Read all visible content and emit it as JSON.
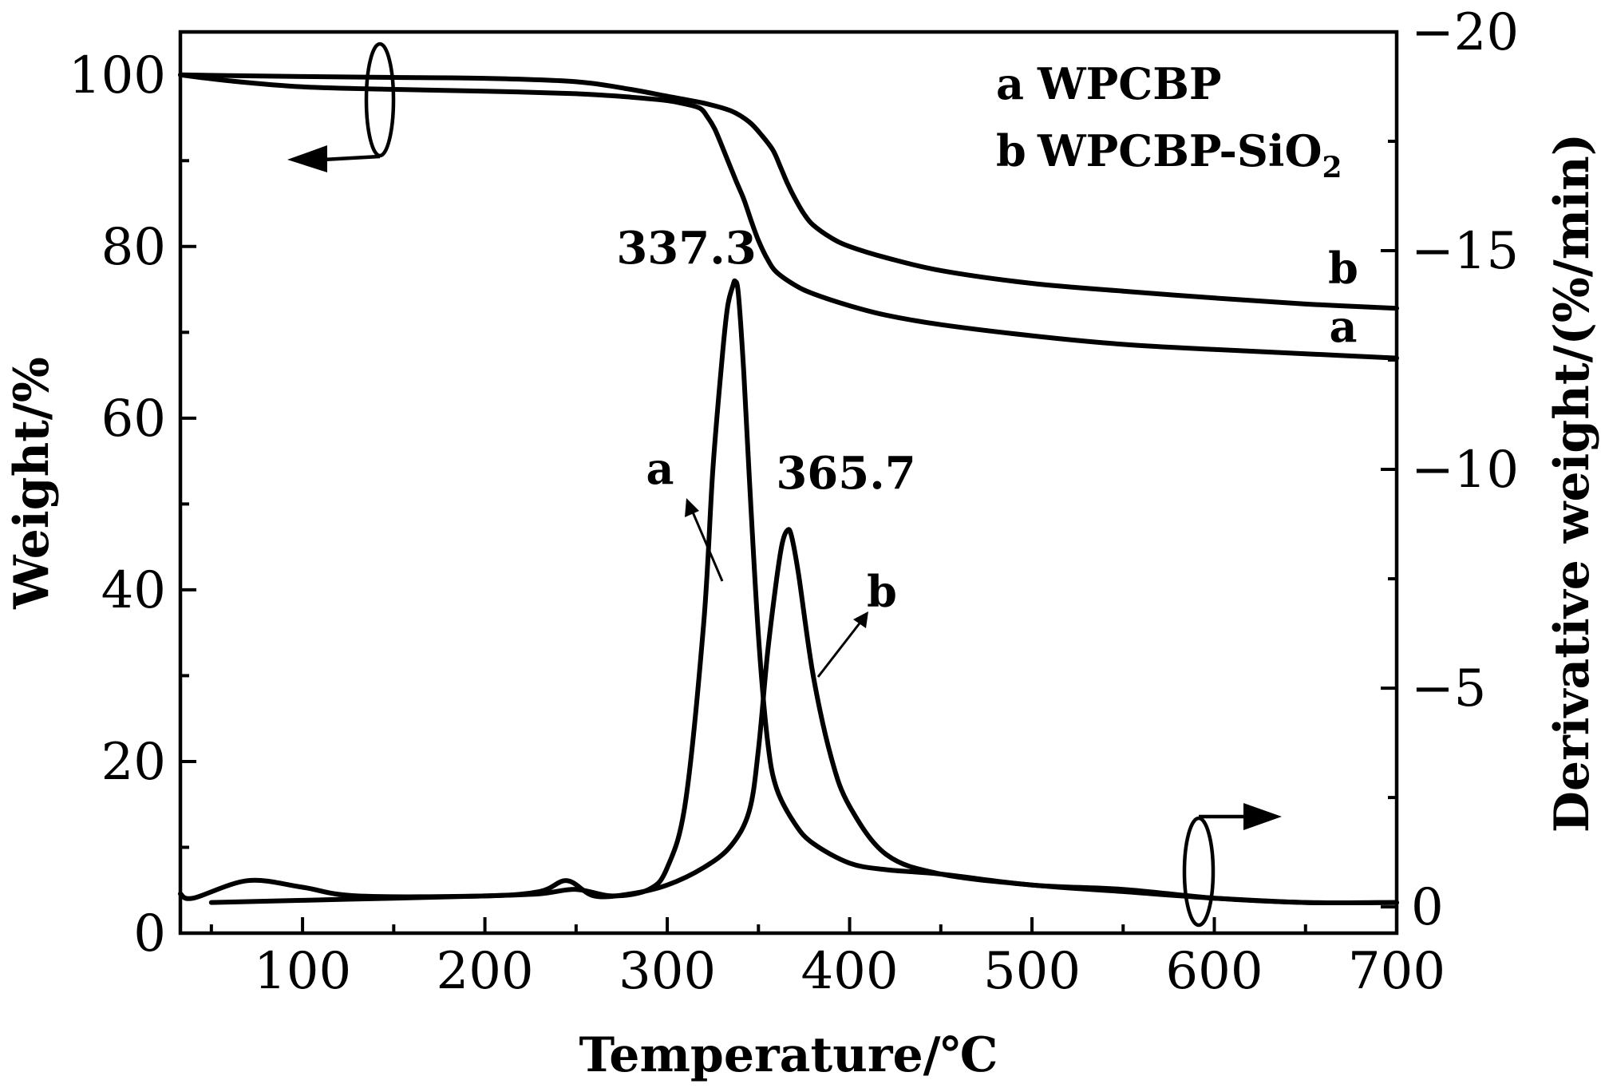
{
  "chart_data": {
    "type": "line",
    "x_label": "Temperature/℃",
    "y_label_left": "Weight/%",
    "y_label_right": "Derivative weight/(%/min)",
    "xlim": [
      33,
      700
    ],
    "ylim_left": [
      0,
      105
    ],
    "ylim_right": [
      0.6,
      -20
    ],
    "x_ticks": [
      100,
      200,
      300,
      400,
      500,
      600,
      700
    ],
    "x_tick_labels": [
      "100",
      "200",
      "300",
      "400",
      "500",
      "600",
      "700"
    ],
    "y_ticks_left": [
      0,
      20,
      40,
      60,
      80,
      100
    ],
    "y_tick_labels_left": [
      "0",
      "20",
      "40",
      "60",
      "80",
      "100"
    ],
    "y_ticks_right": [
      0,
      -5,
      -10,
      -15,
      -20
    ],
    "y_tick_labels_right": [
      "0",
      "−5",
      "−10",
      "−15",
      "−20"
    ],
    "legend": {
      "position": "top-right",
      "entries": [
        {
          "key": "a",
          "name": "WPCBP"
        },
        {
          "key": "b",
          "name": "WPCBP-SiO",
          "subscript": "2"
        }
      ]
    },
    "curve_end_labels": [
      "a",
      "b"
    ],
    "peak_annotations": [
      {
        "series": "a",
        "label": "337.3",
        "x": 337.3
      },
      {
        "series": "b",
        "label": "365.7",
        "x": 365.7
      }
    ],
    "dtg_pointer_labels": [
      "a",
      "b"
    ],
    "series": [
      {
        "name": "a",
        "kind": "TG",
        "axis": "left",
        "x": [
          33,
          60,
          100,
          150,
          200,
          250,
          280,
          300,
          310,
          318,
          322,
          326,
          330,
          334,
          338,
          342,
          346,
          350,
          355,
          360,
          370,
          380,
          400,
          420,
          450,
          500,
          550,
          600,
          650,
          700
        ],
        "y": [
          100,
          99.3,
          98.6,
          98.3,
          98.1,
          97.8,
          97.4,
          97.0,
          96.6,
          96.1,
          95.1,
          93.7,
          91.7,
          89.6,
          87.5,
          85.5,
          83.0,
          80.7,
          78.5,
          77.0,
          75.5,
          74.5,
          73.1,
          72.0,
          70.9,
          69.6,
          68.6,
          68.0,
          67.5,
          67.0
        ]
      },
      {
        "name": "b",
        "kind": "TG",
        "axis": "left",
        "x": [
          33,
          60,
          100,
          150,
          200,
          250,
          280,
          300,
          320,
          335,
          345,
          352,
          358,
          362,
          366,
          370,
          375,
          380,
          390,
          400,
          420,
          450,
          500,
          550,
          600,
          650,
          700
        ],
        "y": [
          100,
          99.9,
          99.8,
          99.7,
          99.6,
          99.2,
          98.3,
          97.5,
          96.7,
          95.8,
          94.5,
          92.9,
          91.2,
          89.3,
          87.3,
          85.6,
          83.8,
          82.5,
          81.0,
          80.0,
          78.7,
          77.2,
          75.7,
          74.8,
          74.0,
          73.3,
          72.8
        ]
      },
      {
        "name": "a",
        "kind": "DTG",
        "axis": "right",
        "x": [
          50,
          100,
          150,
          200,
          230,
          250,
          270,
          290,
          300,
          310,
          320,
          325,
          330,
          333,
          336,
          337.3,
          339,
          342,
          345,
          350,
          355,
          360,
          370,
          380,
          400,
          420,
          450,
          500,
          550,
          600,
          650,
          700
        ],
        "y": [
          -0.1,
          -0.15,
          -0.2,
          -0.25,
          -0.3,
          -0.4,
          -0.25,
          -0.4,
          -0.9,
          -2.4,
          -6.5,
          -10.0,
          -12.5,
          -13.7,
          -14.2,
          -14.3,
          -14.0,
          -12.2,
          -9.8,
          -6.2,
          -3.8,
          -2.7,
          -1.9,
          -1.45,
          -1.0,
          -0.85,
          -0.75,
          -0.5,
          -0.4,
          -0.2,
          -0.1,
          -0.1
        ]
      },
      {
        "name": "b",
        "kind": "DTG",
        "axis": "right",
        "x": [
          33,
          40,
          70,
          100,
          130,
          200,
          230,
          245,
          260,
          280,
          300,
          320,
          335,
          345,
          350,
          355,
          360,
          363,
          365.7,
          368,
          372,
          380,
          390,
          400,
          420,
          450,
          500,
          550,
          600,
          650,
          700
        ],
        "y": [
          -0.3,
          -0.2,
          -0.6,
          -0.45,
          -0.25,
          -0.25,
          -0.35,
          -0.6,
          -0.25,
          -0.3,
          -0.5,
          -0.9,
          -1.4,
          -2.2,
          -3.6,
          -5.8,
          -7.5,
          -8.3,
          -8.6,
          -8.5,
          -7.6,
          -5.3,
          -3.4,
          -2.3,
          -1.2,
          -0.75,
          -0.5,
          -0.35,
          -0.2,
          -0.1,
          -0.1
        ]
      }
    ]
  }
}
